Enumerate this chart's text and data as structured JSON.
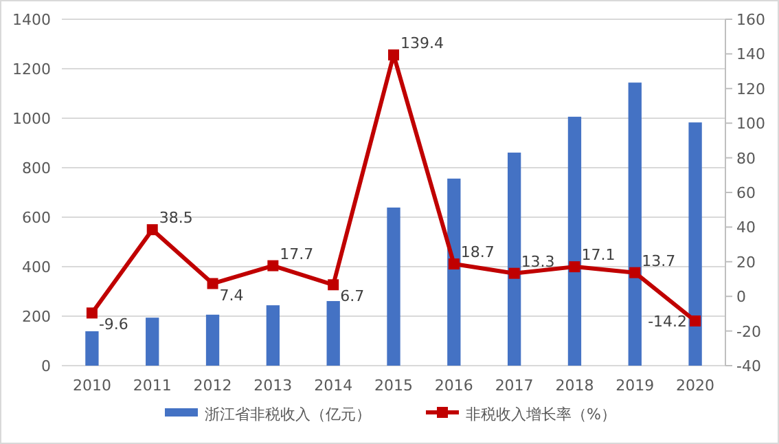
{
  "chart_data": {
    "type": "bar",
    "categories": [
      "2010",
      "2011",
      "2012",
      "2013",
      "2014",
      "2015",
      "2016",
      "2017",
      "2018",
      "2019",
      "2020"
    ],
    "series": [
      {
        "name": "浙江省非税收入（亿元）",
        "color": "#4472c4",
        "values": [
          139,
          194,
          206,
          244,
          261,
          639,
          756,
          861,
          1006,
          1144,
          983
        ]
      },
      {
        "name": "非税收入增长率（%）",
        "type": "line",
        "axis": "y2",
        "color": "#c00000",
        "marker": "square",
        "data_labels": true,
        "values": [
          -9.6,
          38.5,
          7.4,
          17.7,
          6.7,
          139.4,
          18.7,
          13.3,
          17.1,
          13.7,
          -14.2
        ]
      }
    ],
    "ylim": [
      0,
      1400
    ],
    "yticks": [
      0,
      200,
      400,
      600,
      800,
      1000,
      1200,
      1400
    ],
    "y2lim": [
      -40,
      160
    ],
    "y2ticks": [
      -40,
      -20,
      0,
      20,
      40,
      60,
      80,
      100,
      120,
      140,
      160
    ],
    "grid": "y",
    "legend": "bottom"
  }
}
